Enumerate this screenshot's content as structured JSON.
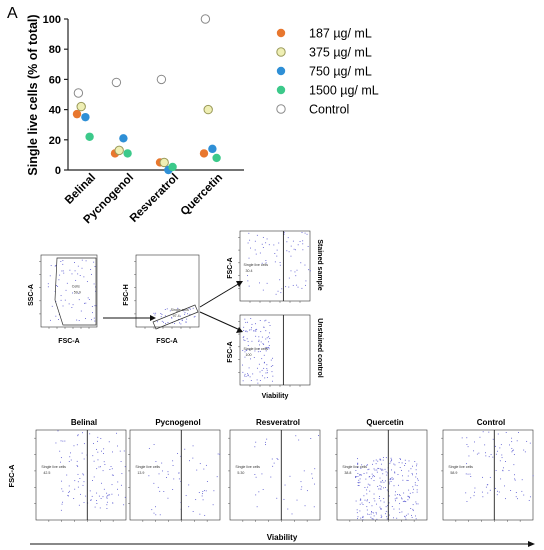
{
  "panel_label": "A",
  "chart_data": {
    "type": "scatter",
    "ylabel": "Single live cells (% of total)",
    "xlabel": "",
    "categories": [
      "Belinal",
      "Pycnogenol",
      "Resveratrol",
      "Quercetin"
    ],
    "ylim": [
      0,
      100
    ],
    "yticks": [
      0,
      20,
      40,
      60,
      80,
      100
    ],
    "legend_position": "right",
    "series": [
      {
        "name": "187 µg/ mL",
        "color": "#E8772E",
        "values": [
          37,
          11,
          5,
          11
        ]
      },
      {
        "name": "375 µg/ mL",
        "color": "#EFEFB4",
        "values": [
          42,
          13,
          5,
          40
        ]
      },
      {
        "name": "750 µg/ mL",
        "color": "#2E8FD6",
        "values": [
          35,
          21,
          0,
          14
        ]
      },
      {
        "name": "1500 µg/ mL",
        "color": "#3CC98A",
        "values": [
          22,
          11,
          2,
          8
        ]
      },
      {
        "name": "Control",
        "color": "#FFFFFF",
        "values": [
          51,
          58,
          60,
          100
        ]
      }
    ]
  },
  "gating": {
    "plot1": {
      "ylabel": "SSC-A",
      "xlabel": "FSC-A",
      "gate_name": "Cells",
      "gate_value": "59.9"
    },
    "plot2": {
      "ylabel": "FSC-H",
      "xlabel": "FSC-A",
      "gate_name": "Single cells",
      "gate_value": "97.4"
    },
    "plot3": {
      "ylabel": "FSC-A",
      "side_label": "Stained sample",
      "gate_name": "Single live cells",
      "gate_value": "30.4"
    },
    "plot4": {
      "ylabel": "FSC-A",
      "side_label": "Unstained control",
      "gate_name": "Single live cells",
      "gate_value": "100"
    },
    "xlabel_bottom": "Viability"
  },
  "bottom_row": {
    "ylabel": "FSC-A",
    "xlabel": "Viability",
    "plots": [
      {
        "title": "Belinal",
        "gate_name": "Single live cells",
        "gate_value": "42.5"
      },
      {
        "title": "Pycnogenol",
        "gate_name": "Single live cells",
        "gate_value": "13.9"
      },
      {
        "title": "Resveratrol",
        "gate_name": "Single live cells",
        "gate_value": "5.30"
      },
      {
        "title": "Quercetin",
        "gate_name": "Single live cells",
        "gate_value": "38.8"
      },
      {
        "title": "Control",
        "gate_name": "Single live cells",
        "gate_value": "58.9"
      }
    ]
  }
}
